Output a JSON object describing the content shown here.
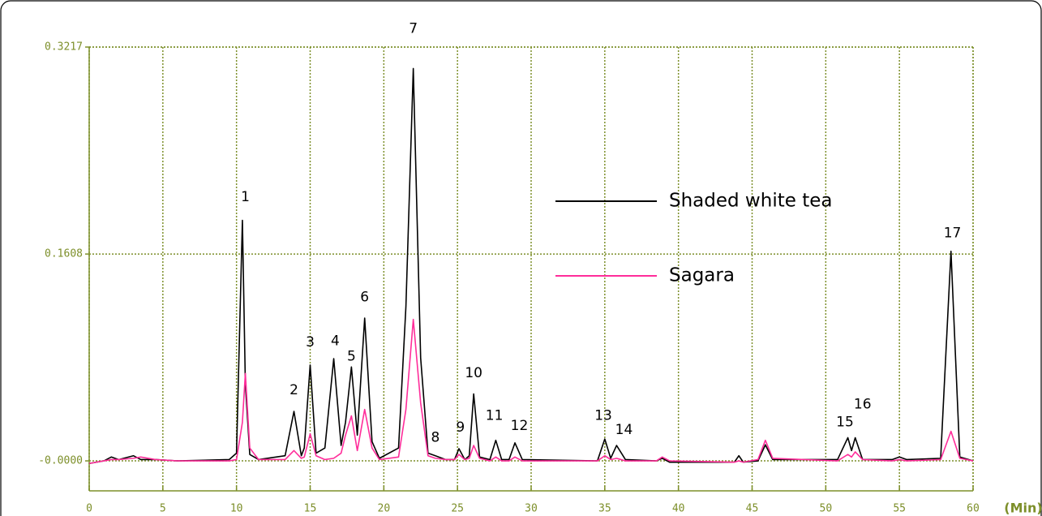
{
  "chart_data": {
    "type": "line",
    "xlabel": "(Min)",
    "x": [
      0,
      1,
      1.5,
      2,
      3,
      3.5,
      4.5,
      6,
      9.5,
      10.0,
      10.4,
      10.6,
      10.9,
      11.5,
      13.3,
      13.9,
      14.4,
      14.6,
      15.0,
      15.4,
      16.0,
      16.6,
      17.1,
      17.4,
      17.8,
      18.2,
      18.7,
      19.2,
      19.7,
      21.0,
      21.5,
      22.0,
      22.5,
      23.0,
      23.5,
      24.2,
      24.8,
      25.1,
      25.5,
      25.8,
      26.1,
      26.5,
      27.2,
      27.6,
      28.0,
      28.5,
      28.9,
      29.4,
      34.5,
      35.0,
      35.4,
      35.8,
      36.4,
      38.5,
      38.9,
      39.4,
      43.8,
      44.1,
      44.4,
      45.4,
      45.9,
      46.4,
      50.8,
      51.5,
      51.75,
      52.0,
      52.5,
      54.5,
      55.0,
      55.5,
      57.8,
      58.5,
      59.1,
      60
    ],
    "series": [
      {
        "name": "Shaded white tea",
        "color": "#000000",
        "values": [
          -0.002,
          0.0,
          0.003,
          0.001,
          0.004,
          0.001,
          0.001,
          0.0,
          0.001,
          0.006,
          0.187,
          0.06,
          0.005,
          0.001,
          0.004,
          0.0385,
          0.004,
          0.01,
          0.0745,
          0.006,
          0.01,
          0.0795,
          0.012,
          0.03,
          0.073,
          0.02,
          0.111,
          0.015,
          0.002,
          0.01,
          0.12,
          0.305,
          0.08,
          0.006,
          0.004,
          0.001,
          0.001,
          0.0095,
          0.001,
          0.004,
          0.052,
          0.003,
          0.001,
          0.016,
          0.001,
          0.001,
          0.014,
          0.001,
          0.0,
          0.017,
          0.002,
          0.012,
          0.001,
          0.0,
          0.002,
          -0.001,
          -0.001,
          0.004,
          -0.001,
          0.0,
          0.0125,
          0.001,
          0.001,
          0.018,
          0.008,
          0.018,
          0.001,
          0.001,
          0.003,
          0.001,
          0.002,
          0.163,
          0.003,
          0.0
        ]
      },
      {
        "name": "Sagara",
        "color": "#ff2d9a",
        "values": [
          -0.002,
          0.0,
          0.001,
          0.001,
          0.002,
          0.003,
          0.001,
          0.0,
          0.0,
          0.001,
          0.03,
          0.068,
          0.01,
          0.001,
          0.001,
          0.008,
          0.002,
          0.003,
          0.021,
          0.004,
          0.001,
          0.002,
          0.006,
          0.02,
          0.035,
          0.008,
          0.04,
          0.01,
          0.001,
          0.003,
          0.04,
          0.11,
          0.045,
          0.004,
          0.002,
          0.001,
          0.001,
          0.005,
          0.001,
          0.002,
          0.012,
          0.002,
          0.0,
          0.003,
          0.0,
          0.0,
          0.003,
          0.0,
          0.0,
          0.004,
          0.001,
          0.002,
          0.0,
          0.0,
          0.003,
          0.0,
          -0.001,
          0.0,
          -0.001,
          0.001,
          0.016,
          0.002,
          0.0,
          0.005,
          0.003,
          0.007,
          0.001,
          0.0,
          0.001,
          0.0,
          0.001,
          0.023,
          0.002,
          0.0
        ]
      }
    ],
    "annotations": [
      {
        "text": "1",
        "x": 10.6,
        "y": 0.205
      },
      {
        "text": "2",
        "x": 13.9,
        "y": 0.055
      },
      {
        "text": "3",
        "x": 15.0,
        "y": 0.092
      },
      {
        "text": "4",
        "x": 16.7,
        "y": 0.093
      },
      {
        "text": "5",
        "x": 17.8,
        "y": 0.081
      },
      {
        "text": "6",
        "x": 18.7,
        "y": 0.127
      },
      {
        "text": "7",
        "x": 22.0,
        "y": 0.336
      },
      {
        "text": "8",
        "x": 23.5,
        "y": 0.018
      },
      {
        "text": "9",
        "x": 25.2,
        "y": 0.026
      },
      {
        "text": "10",
        "x": 26.1,
        "y": 0.068
      },
      {
        "text": "11",
        "x": 27.5,
        "y": 0.035
      },
      {
        "text": "12",
        "x": 29.2,
        "y": 0.027
      },
      {
        "text": "13",
        "x": 34.9,
        "y": 0.035
      },
      {
        "text": "14",
        "x": 36.3,
        "y": 0.024
      },
      {
        "text": "15",
        "x": 51.3,
        "y": 0.03
      },
      {
        "text": "16",
        "x": 52.5,
        "y": 0.044
      },
      {
        "text": "17",
        "x": 58.6,
        "y": 0.177
      }
    ],
    "xlim": [
      0,
      60
    ],
    "xticks": [
      0,
      5,
      10,
      15,
      20,
      25,
      30,
      35,
      40,
      45,
      50,
      55,
      60
    ],
    "ylim": [
      -0.0233,
      0.3217
    ],
    "yticks": [
      {
        "value": 0,
        "label": "-0.0000"
      },
      0.1608,
      0.3217
    ],
    "grid": true,
    "axis_color": "#7d8f2a"
  }
}
